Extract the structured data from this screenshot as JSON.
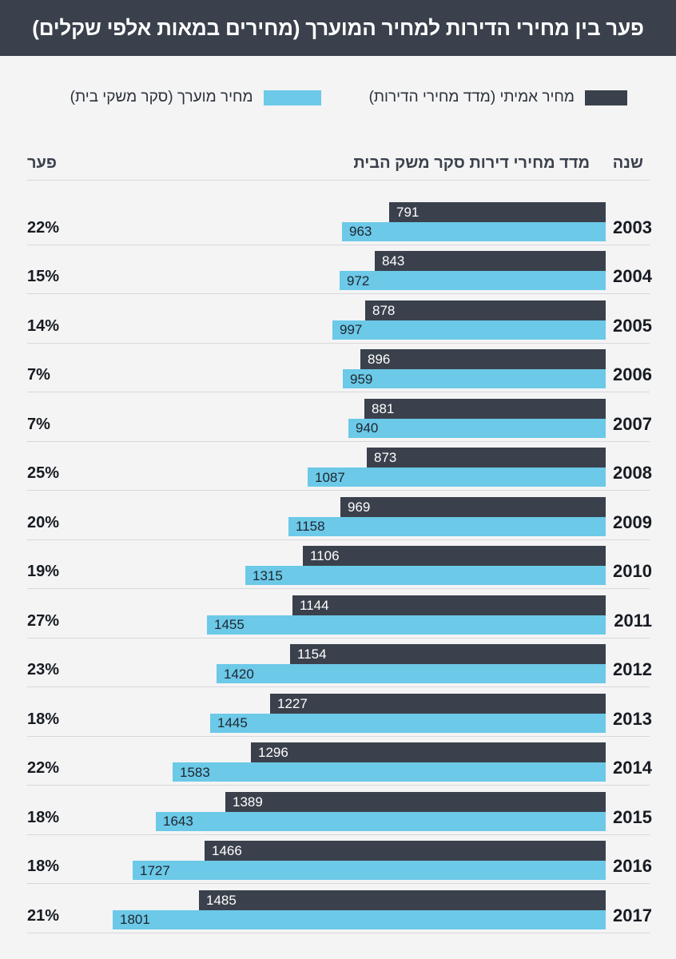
{
  "title": "פער בין מחירי הדירות למחיר המוערך (מחירים במאות אלפי שקלים)",
  "legend": {
    "real": {
      "label": "מחיר אמיתי (מדד מחירי הדירות)",
      "color": "#3a414c"
    },
    "estimated": {
      "label": "מחיר מוערך (סקר משקי בית)",
      "color": "#6cc9e8"
    }
  },
  "columns": {
    "gap": "פער",
    "values": "מדד מחירי דירות סקר משק הבית",
    "year": "שנה"
  },
  "chart_data": {
    "type": "bar",
    "orientation": "horizontal",
    "direction": "rtl",
    "title": "פער בין מחירי הדירות למחיר המוערך (מחירים במאות אלפי שקלים)",
    "categories": [
      "2003",
      "2004",
      "2005",
      "2006",
      "2007",
      "2008",
      "2009",
      "2010",
      "2011",
      "2012",
      "2013",
      "2014",
      "2015",
      "2016",
      "2017"
    ],
    "series": [
      {
        "name": "מחיר אמיתי (מדד מחירי הדירות)",
        "color": "#3a414c",
        "values": [
          791,
          843,
          878,
          896,
          881,
          873,
          969,
          1106,
          1144,
          1154,
          1227,
          1296,
          1389,
          1466,
          1485
        ]
      },
      {
        "name": "מחיר מוערך (סקר משקי בית)",
        "color": "#6cc9e8",
        "values": [
          963,
          972,
          997,
          959,
          940,
          1087,
          1158,
          1315,
          1455,
          1420,
          1445,
          1583,
          1643,
          1727,
          1801
        ]
      }
    ],
    "gap_percent": [
      "22%",
      "15%",
      "14%",
      "7%",
      "7%",
      "25%",
      "20%",
      "19%",
      "27%",
      "23%",
      "18%",
      "22%",
      "18%",
      "18%",
      "21%"
    ],
    "axis_range": [
      0,
      1801
    ],
    "value_labels": true,
    "legend_position": "top",
    "grid": false
  },
  "colors": {
    "background": "#f4f4f5",
    "title_bar": "#3a414c",
    "real_bar": "#3a414c",
    "estimated_bar": "#6cc9e8",
    "separator": "#d8d8db"
  }
}
